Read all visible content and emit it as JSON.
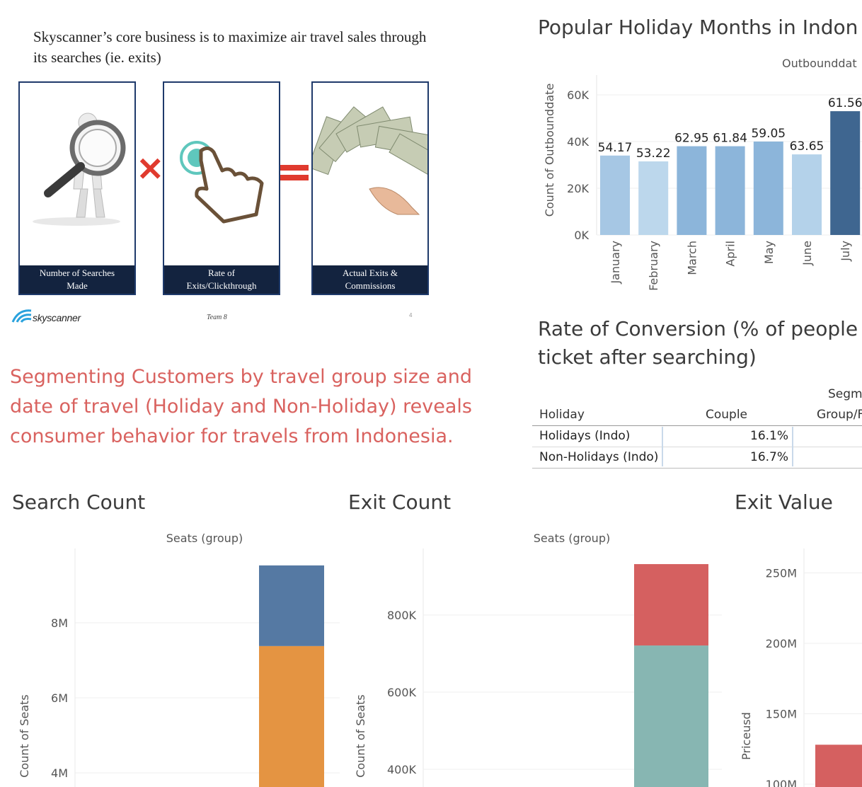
{
  "slide": {
    "title": "Skyscanner’s core business is to maximize air travel sales through its searches (ie. exits)",
    "boxes": [
      {
        "caption_line1": "Number of Searches",
        "caption_line2": "Made"
      },
      {
        "caption_line1": "Rate of",
        "caption_line2": "Exits/Clickthrough"
      },
      {
        "caption_line1": "Actual Exits &",
        "caption_line2": "Commissions"
      }
    ],
    "logo_text": "skyscanner",
    "team": "Team 8",
    "page": "4"
  },
  "headline": "Segmenting Customers by travel group size and date of travel (Holiday and Non-Holiday) reveals consumer behavior for travels from Indonesia.",
  "titles": {
    "popular": "Popular Holiday Months in Indon",
    "conversion_line1": "Rate of Conversion (% of people ",
    "conversion_line2": "ticket after searching)",
    "search": "Search Count",
    "exit_count": "Exit Count",
    "exit_value": "Exit Value"
  },
  "colors": {
    "light_blue": "#a6c7e4",
    "mid_blue": "#8cb5da",
    "dark_blue": "#3f6690",
    "steel_blue": "#5579a3",
    "orange": "#e49442",
    "red": "#d56060",
    "teal": "#87b6b2",
    "headline": "#d9625f"
  },
  "chart_data": [
    {
      "id": "popular",
      "type": "bar",
      "header": "Outbounddat",
      "ylabel": "Count of Outbounddate",
      "categories": [
        "January",
        "February",
        "March",
        "April",
        "May",
        "June",
        "July"
      ],
      "values": [
        34000,
        31500,
        38000,
        38000,
        40000,
        34500,
        53000
      ],
      "labels": [
        "54.17",
        "53.22",
        "62.95",
        "61.84",
        "59.05",
        "63.65",
        "61.56"
      ],
      "ylim": [
        0,
        66000
      ],
      "yticks": [
        {
          "v": 0,
          "t": "0K"
        },
        {
          "v": 20000,
          "t": "20K"
        },
        {
          "v": 40000,
          "t": "40K"
        },
        {
          "v": 60000,
          "t": "60K"
        }
      ]
    },
    {
      "id": "conversion",
      "type": "table",
      "header_top": "Segm",
      "columns": [
        "Holiday",
        "Couple",
        "Group/F"
      ],
      "rows": [
        {
          "holiday": "Holidays (Indo)",
          "couple": "16.1%"
        },
        {
          "holiday": "Non-Holidays (Indo)",
          "couple": "16.7%"
        }
      ]
    },
    {
      "id": "search",
      "type": "bar",
      "header": "Seats (group)",
      "ylabel": "Count of Seats",
      "yticks": [
        {
          "v": 4000000,
          "t": "4M"
        },
        {
          "v": 6000000,
          "t": "6M"
        },
        {
          "v": 8000000,
          "t": "8M"
        }
      ],
      "stack": [
        {
          "from": 0,
          "to": 7380000
        },
        {
          "from": 7380000,
          "to": 9530000
        }
      ]
    },
    {
      "id": "exit_count",
      "type": "bar",
      "header": "Seats (group)",
      "ylabel": "Count of Seats",
      "yticks": [
        {
          "v": 400000,
          "t": "400K"
        },
        {
          "v": 600000,
          "t": "600K"
        },
        {
          "v": 800000,
          "t": "800K"
        }
      ],
      "stack": [
        {
          "from": 0,
          "to": 721000
        },
        {
          "from": 721000,
          "to": 932000
        }
      ]
    },
    {
      "id": "exit_value",
      "type": "bar",
      "ylabel": "Priceusd",
      "yticks": [
        {
          "v": 100000000,
          "t": "100M"
        },
        {
          "v": 150000000,
          "t": "150M"
        },
        {
          "v": 200000000,
          "t": "200M"
        },
        {
          "v": 250000000,
          "t": "250M"
        }
      ],
      "stack": [
        {
          "from": 0,
          "to": 128000000
        }
      ]
    }
  ]
}
